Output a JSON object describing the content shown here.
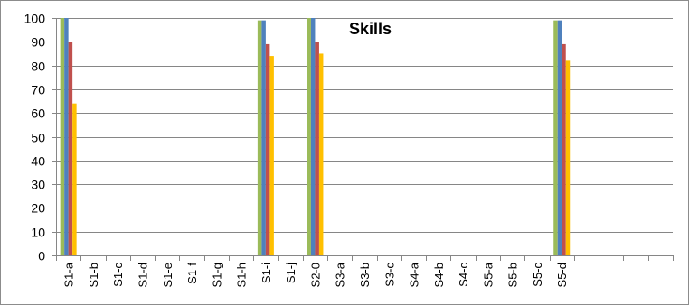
{
  "chart_data": {
    "type": "bar",
    "title": "Skills",
    "xlabel": "",
    "ylabel": "",
    "ylim": [
      0,
      100
    ],
    "ytick_step": 10,
    "grid": true,
    "legend": "none",
    "total_slots": 25,
    "categories": [
      "S1-a",
      "S1-b",
      "S1-c",
      "S1-d",
      "S1-e",
      "S1-f",
      "S1-g",
      "S1-h",
      "S1-i",
      "S1-j",
      "S2-0",
      "S3-a",
      "S3-b",
      "S3-c",
      "S4-a",
      "S4-b",
      "S4-c",
      "S5-a",
      "S5-b",
      "S5-c",
      "S5-d"
    ],
    "series": [
      {
        "color": "#9bbb59",
        "values": [
          100,
          null,
          null,
          null,
          null,
          null,
          null,
          null,
          99,
          null,
          100,
          null,
          null,
          null,
          null,
          null,
          null,
          null,
          null,
          null,
          99
        ]
      },
      {
        "color": "#4f81bd",
        "values": [
          100,
          null,
          null,
          null,
          null,
          null,
          null,
          null,
          99,
          null,
          100,
          null,
          null,
          null,
          null,
          null,
          null,
          null,
          null,
          null,
          99
        ]
      },
      {
        "color": "#c0504d",
        "values": [
          90,
          null,
          null,
          null,
          null,
          null,
          null,
          null,
          89,
          null,
          90,
          null,
          null,
          null,
          null,
          null,
          null,
          null,
          null,
          null,
          89
        ]
      },
      {
        "color": "#ffc000",
        "values": [
          64,
          null,
          null,
          null,
          null,
          null,
          null,
          null,
          84,
          null,
          85,
          null,
          null,
          null,
          null,
          null,
          null,
          null,
          null,
          null,
          82
        ]
      }
    ]
  }
}
